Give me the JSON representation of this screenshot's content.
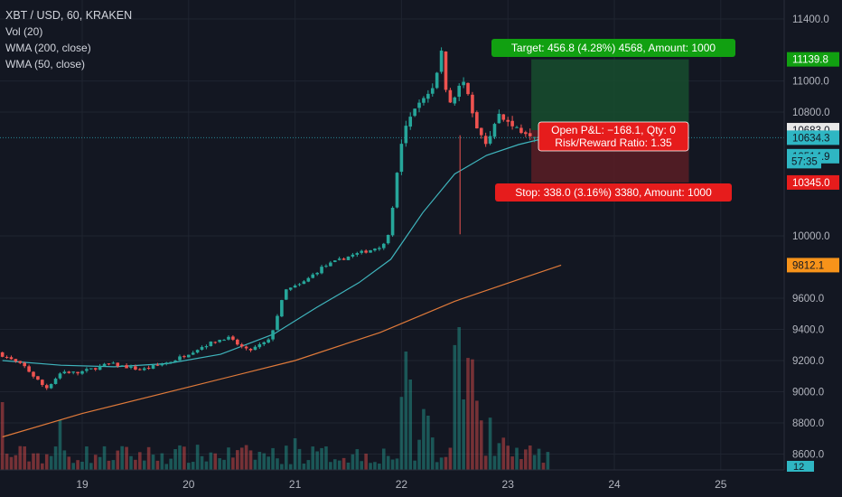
{
  "legend": {
    "symbol": "XBT / USD, 60, KRAKEN",
    "vol": "Vol (20)",
    "wma200": "WMA (200, close)",
    "wma50": "WMA (50, close)"
  },
  "colors": {
    "background": "#131722",
    "grid": "#1f2430",
    "up": "#26a69a",
    "down": "#ef5350",
    "wma50": "#3fb5bd",
    "wma200": "#e07a3a",
    "target_zone": "#174d2e",
    "stop_zone": "#5a1d24",
    "target_label": "#11a011",
    "stop_label": "#e61c1c"
  },
  "chart_data": {
    "type": "candlestick",
    "instrument": "XBT / USD, 60, KRAKEN",
    "ylim": [
      8520,
      11500
    ],
    "y_ticks": [
      8600,
      8800,
      9000,
      9200,
      9400,
      9600,
      10000,
      10800,
      11000,
      11400
    ],
    "y_tick_labels": [
      "8600.0",
      "8800.0",
      "9000.0",
      "9200.0",
      "9400.0",
      "9600.0",
      "10000.0",
      "10800.0",
      "11000.0",
      "11400.0"
    ],
    "x_ticks": [
      19,
      20,
      21,
      22,
      23,
      24,
      25
    ],
    "x_tick_labels": [
      "19",
      "20",
      "21",
      "22",
      "23",
      "24",
      "25"
    ],
    "xlim": [
      18.25,
      25.6
    ],
    "last_candle_day": 23.4,
    "anchors": [
      [
        18.25,
        9250
      ],
      [
        18.5,
        9160
      ],
      [
        18.7,
        9020
      ],
      [
        18.85,
        9130
      ],
      [
        19.0,
        9120
      ],
      [
        19.3,
        9180
      ],
      [
        19.6,
        9140
      ],
      [
        19.9,
        9200
      ],
      [
        20.2,
        9300
      ],
      [
        20.4,
        9350
      ],
      [
        20.6,
        9260
      ],
      [
        20.8,
        9330
      ],
      [
        20.95,
        9650
      ],
      [
        21.1,
        9690
      ],
      [
        21.3,
        9800
      ],
      [
        21.55,
        9870
      ],
      [
        21.75,
        9910
      ],
      [
        21.9,
        9950
      ],
      [
        21.95,
        10150
      ],
      [
        22.05,
        10650
      ],
      [
        22.2,
        10850
      ],
      [
        22.35,
        10960
      ],
      [
        22.42,
        11200
      ],
      [
        22.48,
        10830
      ],
      [
        22.62,
        11000
      ],
      [
        22.75,
        10690
      ],
      [
        22.85,
        10570
      ],
      [
        22.95,
        10790
      ],
      [
        23.1,
        10700
      ],
      [
        23.3,
        10660
      ],
      [
        23.4,
        10634
      ]
    ],
    "wma50": [
      [
        18.25,
        9200
      ],
      [
        18.8,
        9170
      ],
      [
        19.3,
        9160
      ],
      [
        19.8,
        9180
      ],
      [
        20.3,
        9240
      ],
      [
        20.8,
        9370
      ],
      [
        21.2,
        9540
      ],
      [
        21.6,
        9700
      ],
      [
        21.9,
        9850
      ],
      [
        22.2,
        10150
      ],
      [
        22.5,
        10400
      ],
      [
        22.8,
        10520
      ],
      [
        23.1,
        10590
      ],
      [
        23.4,
        10640
      ]
    ],
    "wma200": [
      [
        18.25,
        8710
      ],
      [
        19.0,
        8860
      ],
      [
        20.0,
        9030
      ],
      [
        21.0,
        9200
      ],
      [
        21.8,
        9380
      ],
      [
        22.5,
        9580
      ],
      [
        23.1,
        9720
      ],
      [
        23.5,
        9812
      ]
    ],
    "volume_spikes": [
      [
        18.25,
        75
      ],
      [
        18.8,
        55
      ],
      [
        21.0,
        35
      ],
      [
        22.2,
        52
      ],
      [
        22.6,
        78
      ],
      [
        22.7,
        52
      ],
      [
        22.0,
        48
      ],
      [
        22.05,
        118
      ],
      [
        22.1,
        100
      ],
      [
        22.25,
        60
      ],
      [
        22.5,
        115
      ],
      [
        22.55,
        158
      ],
      [
        22.65,
        95
      ],
      [
        22.85,
        35
      ]
    ],
    "price_labels": [
      {
        "value": 11139.8,
        "text": "11139.8",
        "bg": "#11a011",
        "fg": "#ffffff"
      },
      {
        "value": 10683.0,
        "text": "10683.0",
        "bg": "#e8e8e8",
        "fg": "#131722"
      },
      {
        "value": 10634.3,
        "text": "10634.3",
        "bg": "#2fb6c3",
        "fg": "#131722"
      },
      {
        "value": 10514.9,
        "text": "10514.9",
        "bg": "#2fb6c3",
        "fg": "#131722"
      },
      {
        "value": 10345.0,
        "text": "10345.0",
        "bg": "#e61c1c",
        "fg": "#ffffff"
      },
      {
        "value": 9812.1,
        "text": "9812.1",
        "bg": "#f7931a",
        "fg": "#131722"
      }
    ],
    "countdown": "57:35",
    "volume_label": "12",
    "position": {
      "entry": 10683.0,
      "target": 11139.8,
      "stop": 10345.0,
      "start_day": 23.22,
      "end_day": 24.7,
      "target_text": "Target: 456.8 (4.28%) 4568, Amount: 1000",
      "stop_text": "Stop: 338.0 (3.16%) 3380, Amount: 1000",
      "pnl_text": "Open P&L: −168.1, Qty: 0",
      "rr_text": "Risk/Reward Ratio: 1.35"
    }
  }
}
